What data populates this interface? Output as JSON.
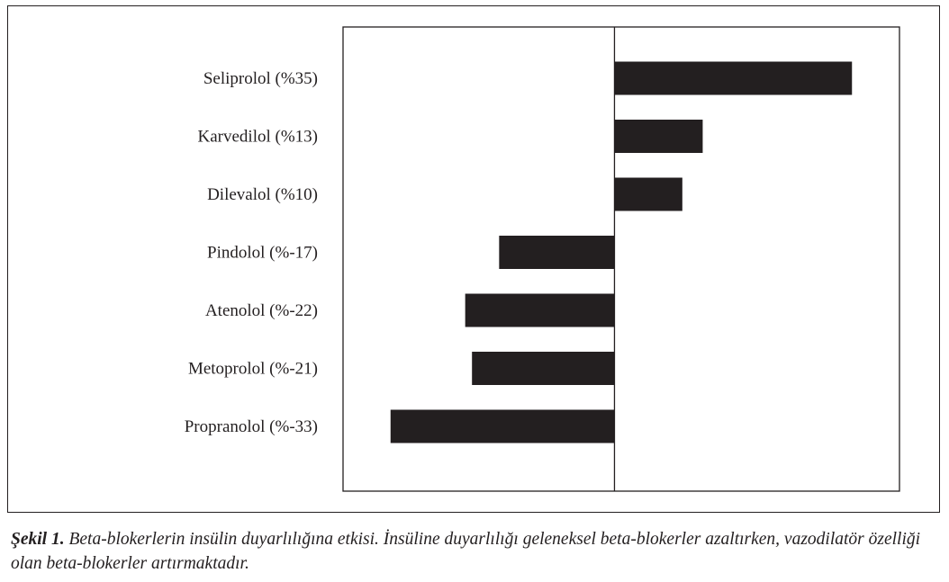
{
  "chart_data": {
    "type": "bar",
    "orientation": "horizontal",
    "categories": [
      "Seliprolol (%35)",
      "Karvedilol (%13)",
      "Dilevalol (%10)",
      "Pindolol (%-17)",
      "Atenolol (%-22)",
      "Metoprolol (%-21)",
      "Propranolol (%-33)"
    ],
    "values": [
      35,
      13,
      10,
      -17,
      -22,
      -21,
      -33
    ],
    "xlim": [
      -40,
      42
    ],
    "grid": false,
    "bar_color": "#231f20"
  },
  "caption": {
    "label": "Şekil 1.",
    "text": " Beta-blokerlerin insülin duyarlılığına etkisi. İnsüline duyarlılığı geleneksel beta-blokerler azaltırken, vazodilatör özelliği olan beta-blokerler artırmaktadır."
  }
}
